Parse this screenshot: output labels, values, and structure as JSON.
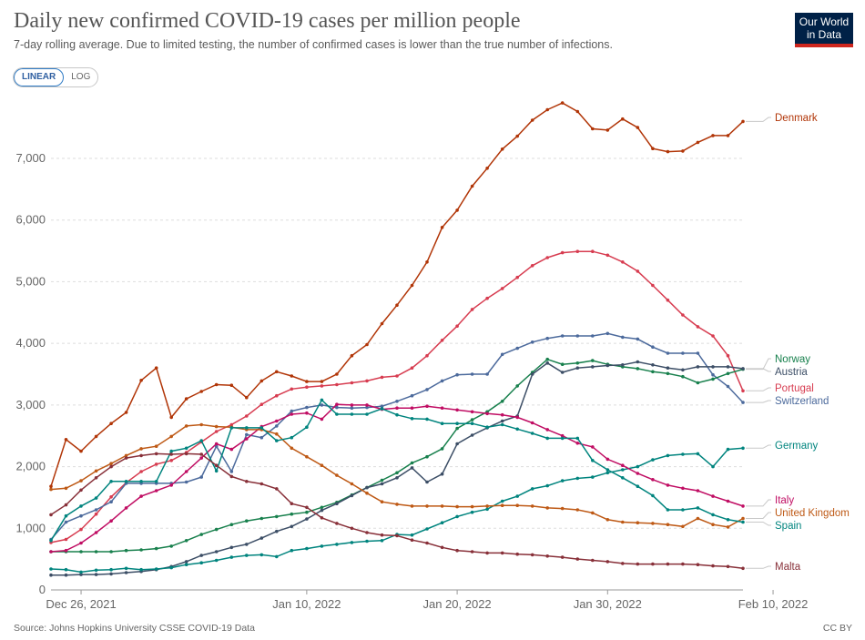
{
  "header": {
    "title": "Daily new confirmed COVID-19 cases per million people",
    "subtitle": "7-day rolling average. Due to limited testing, the number of confirmed cases is lower than the true number of infections.",
    "logo_line1": "Our World",
    "logo_line2": "in Data"
  },
  "scale_toggle": {
    "linear_label": "LINEAR",
    "log_label": "LOG",
    "selected": "LINEAR"
  },
  "footer": {
    "source": "Source: Johns Hopkins University CSSE COVID-19 Data",
    "license": "CC BY"
  },
  "chart_data": {
    "type": "line",
    "title": "Daily new confirmed COVID-19 cases per million people",
    "x_tick_labels": [
      "Dec 26, 2021",
      "Jan 10, 2022",
      "Jan 20, 2022",
      "Jan 30, 2022",
      "Feb 10, 2022"
    ],
    "x_start": "2021-12-24",
    "x_end": "2022-02-12",
    "ylim": [
      0,
      7800
    ],
    "y_ticks": [
      0,
      1000,
      2000,
      3000,
      4000,
      5000,
      6000,
      7000
    ],
    "y_tick_labels": [
      "0",
      "1,000",
      "2,000",
      "3,000",
      "4,000",
      "5,000",
      "6,000",
      "7,000"
    ],
    "grid": "horizontal dashed",
    "legend": "right, labels at line ends",
    "series": [
      {
        "name": "Denmark",
        "color": "#b13507",
        "values": [
          1680,
          2440,
          2250,
          2490,
          2700,
          2880,
          3400,
          3600,
          2800,
          3100,
          3220,
          3330,
          3320,
          3120,
          3390,
          3540,
          3470,
          3380,
          3380,
          3500,
          3800,
          3980,
          4320,
          4620,
          4940,
          5320,
          5880,
          6160,
          6550,
          6840,
          7150,
          7360,
          7620,
          7790,
          7900,
          7760,
          7480,
          7460,
          7640,
          7500,
          7160,
          7110,
          7120,
          7260,
          7370,
          7370,
          7600
        ]
      },
      {
        "name": "Portugal",
        "color": "#d73c50",
        "values": [
          770,
          820,
          980,
          1230,
          1510,
          1740,
          1920,
          2040,
          2100,
          2230,
          2400,
          2570,
          2680,
          2820,
          3010,
          3150,
          3260,
          3290,
          3310,
          3330,
          3360,
          3390,
          3450,
          3470,
          3600,
          3800,
          4050,
          4280,
          4550,
          4730,
          4890,
          5070,
          5260,
          5390,
          5470,
          5490,
          5490,
          5430,
          5320,
          5170,
          4940,
          4700,
          4460,
          4270,
          4120,
          3800,
          3230
        ]
      },
      {
        "name": "Switzerland",
        "color": "#4c6a9c",
        "values": [
          820,
          1100,
          1200,
          1300,
          1430,
          1730,
          1730,
          1730,
          1730,
          1750,
          1830,
          2330,
          1920,
          2520,
          2470,
          2660,
          2900,
          2960,
          3000,
          2960,
          2950,
          2960,
          2980,
          3060,
          3150,
          3250,
          3390,
          3490,
          3500,
          3500,
          3820,
          3920,
          4020,
          4080,
          4120,
          4120,
          4120,
          4160,
          4100,
          4070,
          3940,
          3840,
          3840,
          3840,
          3490,
          3300,
          3040
        ]
      },
      {
        "name": "Norway",
        "color": "#18804d",
        "values": [
          620,
          620,
          620,
          620,
          620,
          640,
          650,
          670,
          710,
          800,
          900,
          980,
          1060,
          1120,
          1160,
          1190,
          1230,
          1260,
          1340,
          1420,
          1540,
          1660,
          1780,
          1900,
          2060,
          2160,
          2290,
          2620,
          2760,
          2890,
          3060,
          3310,
          3530,
          3740,
          3660,
          3680,
          3720,
          3660,
          3620,
          3590,
          3540,
          3510,
          3460,
          3360,
          3420,
          3510,
          3580
        ]
      },
      {
        "name": "Austria",
        "color": "#3c4e66",
        "values": [
          240,
          240,
          250,
          250,
          260,
          280,
          300,
          330,
          380,
          460,
          560,
          620,
          690,
          740,
          840,
          950,
          1030,
          1150,
          1290,
          1400,
          1530,
          1660,
          1720,
          1820,
          1980,
          1750,
          1880,
          2370,
          2510,
          2630,
          2740,
          2820,
          3500,
          3680,
          3530,
          3600,
          3620,
          3640,
          3650,
          3700,
          3650,
          3600,
          3570,
          3620,
          3620,
          3620,
          3590
        ]
      },
      {
        "name": "Germany",
        "color": "#00847e",
        "values": [
          340,
          330,
          290,
          320,
          330,
          350,
          330,
          340,
          360,
          410,
          440,
          480,
          530,
          560,
          570,
          540,
          640,
          670,
          710,
          740,
          770,
          790,
          800,
          900,
          890,
          990,
          1090,
          1190,
          1260,
          1310,
          1440,
          1520,
          1640,
          1690,
          1770,
          1810,
          1830,
          1900,
          1950,
          2000,
          2110,
          2180,
          2200,
          2210,
          2000,
          2280,
          2300
        ]
      },
      {
        "name": "Italy",
        "color": "#c00d63",
        "values": [
          620,
          640,
          760,
          930,
          1120,
          1330,
          1520,
          1610,
          1700,
          1920,
          2140,
          2370,
          2280,
          2450,
          2650,
          2740,
          2850,
          2870,
          2770,
          3010,
          3000,
          3000,
          2930,
          2950,
          2950,
          2980,
          2950,
          2920,
          2890,
          2860,
          2840,
          2800,
          2710,
          2600,
          2500,
          2380,
          2320,
          2120,
          2020,
          1890,
          1790,
          1700,
          1650,
          1610,
          1520,
          1440,
          1360
        ]
      },
      {
        "name": "United Kingdom",
        "color": "#be5915",
        "values": [
          1630,
          1650,
          1770,
          1930,
          2050,
          2180,
          2290,
          2330,
          2490,
          2660,
          2680,
          2650,
          2640,
          2600,
          2600,
          2530,
          2300,
          2160,
          2020,
          1860,
          1720,
          1570,
          1430,
          1390,
          1360,
          1360,
          1360,
          1350,
          1350,
          1360,
          1370,
          1370,
          1360,
          1330,
          1320,
          1300,
          1250,
          1140,
          1100,
          1090,
          1080,
          1060,
          1030,
          1160,
          1060,
          1020,
          1160
        ]
      },
      {
        "name": "Spain",
        "color": "#286bbb",
        "hidden_color_note": "teal",
        "values": [
          800,
          1200,
          1360,
          1490,
          1760,
          1760,
          1760,
          1760,
          2250,
          2300,
          2420,
          1930,
          2630,
          2630,
          2630,
          2420,
          2470,
          2640,
          3080,
          2850,
          2850,
          2850,
          2940,
          2840,
          2780,
          2770,
          2700,
          2700,
          2700,
          2640,
          2680,
          2610,
          2540,
          2460,
          2460,
          2460,
          2100,
          1950,
          1820,
          1680,
          1530,
          1300,
          1300,
          1330,
          1220,
          1140,
          1100
        ]
      },
      {
        "name": "Malta",
        "color": "#883039",
        "values": [
          1220,
          1380,
          1620,
          1820,
          2000,
          2140,
          2180,
          2210,
          2200,
          2210,
          2200,
          2020,
          1840,
          1760,
          1720,
          1640,
          1400,
          1340,
          1170,
          1080,
          1000,
          930,
          890,
          880,
          810,
          760,
          690,
          640,
          620,
          600,
          600,
          580,
          570,
          550,
          530,
          500,
          480,
          460,
          430,
          420,
          420,
          420,
          420,
          410,
          390,
          380,
          350
        ]
      }
    ]
  },
  "series_label_colors": {
    "Denmark": "#b13507",
    "Norway": "#18804d",
    "Austria": "#3c4e66",
    "Portugal": "#d73c50",
    "Switzerland": "#4c6a9c",
    "Germany": "#00847e",
    "Italy": "#c00d63",
    "United Kingdom": "#be5915",
    "Spain": "#00847e",
    "Malta": "#883039"
  }
}
